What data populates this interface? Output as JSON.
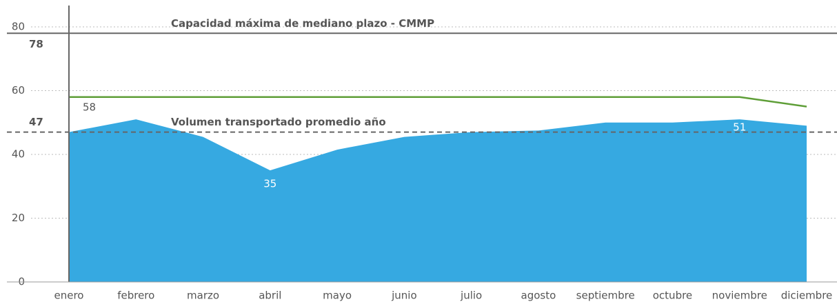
{
  "chart_data": {
    "type": "area",
    "categories": [
      "enero",
      "febrero",
      "marzo",
      "abril",
      "mayo",
      "junio",
      "julio",
      "agosto",
      "septiembre",
      "octubre",
      "noviembre",
      "diciembre"
    ],
    "series": [
      {
        "type": "area",
        "color": "#36a9e1",
        "values": [
          47,
          51,
          45.5,
          35,
          41.5,
          45.5,
          47,
          47.5,
          50,
          50,
          51,
          49
        ]
      },
      {
        "type": "line",
        "color": "#5e9e37",
        "values": [
          58,
          58,
          58,
          58,
          58,
          58,
          58,
          58,
          58,
          58,
          58,
          55
        ]
      }
    ],
    "reference_lines": [
      {
        "label": "Capacidad máxima de mediano plazo - CMMP",
        "value": 78,
        "style": "solid"
      },
      {
        "label": "Volumen transportado promedio año",
        "value": 47,
        "style": "dashed"
      }
    ],
    "ylim": [
      0,
      80
    ],
    "yticks": [
      0,
      20,
      40,
      60,
      80
    ],
    "grid": true
  }
}
